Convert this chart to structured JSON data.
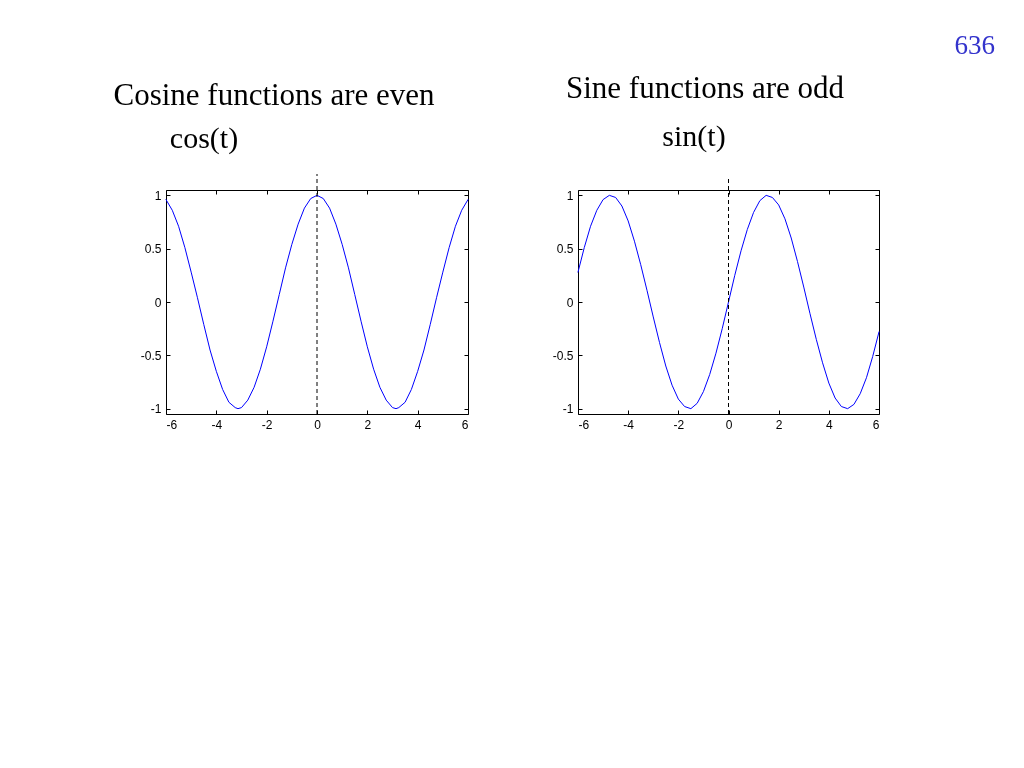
{
  "chart_data": [
    {
      "type": "line",
      "title": "Cosine functions are even",
      "subtitle": "cos(t)",
      "x": [
        -6,
        -5.75,
        -5.5,
        -5.25,
        -5,
        -4.75,
        -4.5,
        -4.25,
        -4,
        -3.75,
        -3.5,
        -3.25,
        -3.14,
        -3,
        -2.75,
        -2.5,
        -2.25,
        -2,
        -1.75,
        -1.5,
        -1.25,
        -1,
        -0.75,
        -0.5,
        -0.25,
        0,
        0.25,
        0.5,
        0.75,
        1,
        1.25,
        1.5,
        1.75,
        2,
        2.25,
        2.5,
        2.75,
        3,
        3.14,
        3.25,
        3.5,
        3.75,
        4,
        4.25,
        4.5,
        4.75,
        5,
        5.25,
        5.5,
        5.75,
        6
      ],
      "series": [
        {
          "color": "#0000ff",
          "values": [
            0.96,
            0.86,
            0.71,
            0.51,
            0.28,
            0.04,
            -0.21,
            -0.45,
            -0.65,
            -0.82,
            -0.94,
            -0.99,
            -1,
            -0.99,
            -0.92,
            -0.8,
            -0.63,
            -0.42,
            -0.18,
            0.07,
            0.32,
            0.54,
            0.73,
            0.88,
            0.97,
            1,
            0.97,
            0.88,
            0.73,
            0.54,
            0.32,
            0.07,
            -0.18,
            -0.42,
            -0.63,
            -0.8,
            -0.92,
            -0.99,
            -1,
            -0.99,
            -0.94,
            -0.82,
            -0.65,
            -0.45,
            -0.21,
            0.04,
            0.28,
            0.51,
            0.71,
            0.86,
            0.96
          ]
        }
      ],
      "xlim": [
        -6,
        6
      ],
      "ylim": [
        -1.05,
        1.05
      ],
      "xticks": [
        -6,
        -4,
        -2,
        0,
        2,
        4,
        6
      ],
      "yticks": [
        -1,
        -0.5,
        0,
        0.5,
        1
      ],
      "ref_lines": [
        {
          "axis": "x",
          "value": 0,
          "color": "#000000",
          "line_style": "dashed"
        }
      ]
    },
    {
      "type": "line",
      "title": "Sine functions are odd",
      "subtitle": "sin(t)",
      "x": [
        -6,
        -5.75,
        -5.5,
        -5.25,
        -5,
        -4.75,
        -4.5,
        -4.25,
        -4,
        -3.75,
        -3.5,
        -3.25,
        -3,
        -2.75,
        -2.5,
        -2.25,
        -2,
        -1.75,
        -1.5,
        -1.25,
        -1,
        -0.75,
        -0.5,
        -0.25,
        0,
        0.25,
        0.5,
        0.75,
        1,
        1.25,
        1.5,
        1.75,
        2,
        2.25,
        2.5,
        2.75,
        3,
        3.25,
        3.5,
        3.75,
        4,
        4.25,
        4.5,
        4.75,
        5,
        5.25,
        5.5,
        5.75,
        6
      ],
      "series": [
        {
          "color": "#0000ff",
          "values": [
            0.28,
            0.51,
            0.71,
            0.86,
            0.96,
            1,
            0.98,
            0.9,
            0.76,
            0.57,
            0.35,
            0.11,
            -0.14,
            -0.38,
            -0.6,
            -0.78,
            -0.91,
            -0.98,
            -1,
            -0.95,
            -0.84,
            -0.68,
            -0.48,
            -0.25,
            0,
            0.25,
            0.48,
            0.68,
            0.84,
            0.95,
            1,
            0.98,
            0.91,
            0.78,
            0.6,
            0.38,
            0.14,
            -0.11,
            -0.35,
            -0.57,
            -0.76,
            -0.9,
            -0.98,
            -1,
            -0.96,
            -0.86,
            -0.71,
            -0.51,
            -0.28
          ]
        }
      ],
      "xlim": [
        -6,
        6
      ],
      "ylim": [
        -1.05,
        1.05
      ],
      "xticks": [
        -6,
        -4,
        -2,
        0,
        2,
        4,
        6
      ],
      "yticks": [
        -1,
        -0.5,
        0,
        0.5,
        1
      ],
      "ref_lines": [
        {
          "axis": "x",
          "value": 0,
          "color": "#000000",
          "line_style": "dashed"
        }
      ],
      "annotations": [
        "636"
      ]
    }
  ]
}
